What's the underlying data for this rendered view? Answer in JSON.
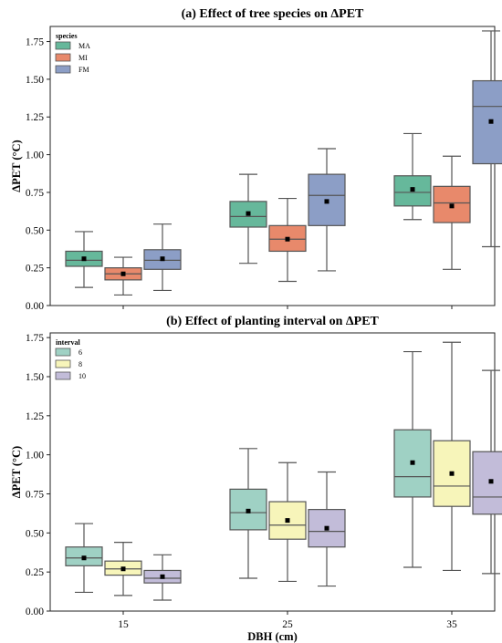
{
  "chart_data": [
    {
      "type": "box",
      "title": "(a) Effect of tree species on ΔPET",
      "ylabel": "ΔPET (°C)",
      "xlabel": "",
      "ylim": [
        0,
        1.85
      ],
      "yticks": [
        "0.00",
        "0.25",
        "0.50",
        "0.75",
        "1.00",
        "1.25",
        "1.50",
        "1.75"
      ],
      "categories": [
        "15",
        "25",
        "35"
      ],
      "legend": {
        "title": "species",
        "placement": "top-left"
      },
      "series": [
        {
          "name": "MA",
          "color": "#66b89b",
          "boxes": [
            {
              "whislo": 0.12,
              "q1": 0.26,
              "med": 0.3,
              "q3": 0.36,
              "whishi": 0.49,
              "mean": 0.31
            },
            {
              "whislo": 0.28,
              "q1": 0.52,
              "med": 0.59,
              "q3": 0.69,
              "whishi": 0.87,
              "mean": 0.61
            },
            {
              "whislo": 0.57,
              "q1": 0.66,
              "med": 0.75,
              "q3": 0.86,
              "whishi": 1.14,
              "mean": 0.77
            }
          ]
        },
        {
          "name": "MI",
          "color": "#e8896b",
          "boxes": [
            {
              "whislo": 0.07,
              "q1": 0.17,
              "med": 0.21,
              "q3": 0.25,
              "whishi": 0.32,
              "mean": 0.21
            },
            {
              "whislo": 0.16,
              "q1": 0.36,
              "med": 0.44,
              "q3": 0.53,
              "whishi": 0.71,
              "mean": 0.44
            },
            {
              "whislo": 0.24,
              "q1": 0.55,
              "med": 0.68,
              "q3": 0.79,
              "whishi": 0.99,
              "mean": 0.66
            }
          ]
        },
        {
          "name": "FM",
          "color": "#8c9ec6",
          "boxes": [
            {
              "whislo": 0.1,
              "q1": 0.24,
              "med": 0.3,
              "q3": 0.37,
              "whishi": 0.54,
              "mean": 0.31
            },
            {
              "whislo": 0.23,
              "q1": 0.53,
              "med": 0.73,
              "q3": 0.87,
              "whishi": 1.04,
              "mean": 0.69
            },
            {
              "whislo": 0.39,
              "q1": 0.94,
              "med": 1.32,
              "q3": 1.49,
              "whishi": 1.82,
              "mean": 1.22
            }
          ]
        }
      ]
    },
    {
      "type": "box",
      "title": "(b) Effect of planting interval on ΔPET",
      "ylabel": "ΔPET (°C)",
      "xlabel": "DBH (cm)",
      "ylim": [
        0,
        1.78
      ],
      "yticks": [
        "0.00",
        "0.25",
        "0.50",
        "0.75",
        "1.00",
        "1.25",
        "1.50",
        "1.75"
      ],
      "categories": [
        "15",
        "25",
        "35"
      ],
      "legend": {
        "title": "interval",
        "placement": "top-left"
      },
      "series": [
        {
          "name": "6",
          "color": "#9fd1c4",
          "boxes": [
            {
              "whislo": 0.12,
              "q1": 0.29,
              "med": 0.34,
              "q3": 0.41,
              "whishi": 0.56,
              "mean": 0.34
            },
            {
              "whislo": 0.21,
              "q1": 0.52,
              "med": 0.63,
              "q3": 0.78,
              "whishi": 1.04,
              "mean": 0.64
            },
            {
              "whislo": 0.28,
              "q1": 0.73,
              "med": 0.86,
              "q3": 1.16,
              "whishi": 1.66,
              "mean": 0.95
            }
          ]
        },
        {
          "name": "8",
          "color": "#f7f5ba",
          "boxes": [
            {
              "whislo": 0.1,
              "q1": 0.23,
              "med": 0.27,
              "q3": 0.32,
              "whishi": 0.44,
              "mean": 0.27
            },
            {
              "whislo": 0.19,
              "q1": 0.46,
              "med": 0.55,
              "q3": 0.7,
              "whishi": 0.95,
              "mean": 0.58
            },
            {
              "whislo": 0.26,
              "q1": 0.67,
              "med": 0.8,
              "q3": 1.09,
              "whishi": 1.72,
              "mean": 0.88
            }
          ]
        },
        {
          "name": "10",
          "color": "#c2bcd9",
          "boxes": [
            {
              "whislo": 0.07,
              "q1": 0.18,
              "med": 0.21,
              "q3": 0.26,
              "whishi": 0.36,
              "mean": 0.22
            },
            {
              "whislo": 0.16,
              "q1": 0.41,
              "med": 0.51,
              "q3": 0.65,
              "whishi": 0.89,
              "mean": 0.53
            },
            {
              "whislo": 0.24,
              "q1": 0.62,
              "med": 0.73,
              "q3": 1.02,
              "whishi": 1.54,
              "mean": 0.83
            }
          ]
        }
      ]
    }
  ]
}
